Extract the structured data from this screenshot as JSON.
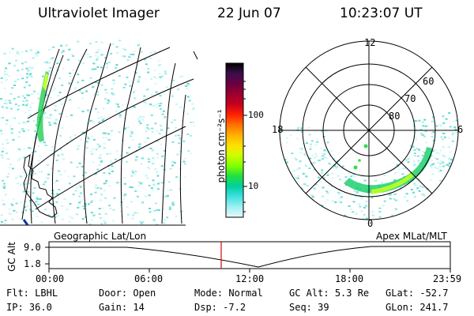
{
  "header": {
    "instrument": "Ultraviolet Imager",
    "date": "22 Jun 07",
    "time": "10:23:07 UT"
  },
  "colorbar": {
    "unit_label": "photon cm⁻²s⁻¹",
    "ticks": [
      "100",
      "10"
    ],
    "colors": [
      "#000000",
      "#3a0f4a",
      "#6a0040",
      "#9a0030",
      "#c80020",
      "#ff2000",
      "#ff7000",
      "#ffb000",
      "#ffe000",
      "#ccff00",
      "#80ff00",
      "#20e040",
      "#00d0a0",
      "#40e0e0",
      "#a0f0f0",
      "#e8f8f8"
    ]
  },
  "geo_panel": {
    "label": "Geographic Lat/Lon"
  },
  "polar_panel": {
    "label": "Apex MLat/MLT",
    "mlt_labels": [
      "12",
      "18",
      "6",
      "0"
    ],
    "mlat_labels": [
      "60",
      "70",
      "80"
    ]
  },
  "altitude_panel": {
    "ylabel": "GC Alt",
    "y_ticks": [
      "9.0",
      "1.8"
    ],
    "x_ticks": [
      "00:00",
      "06:00",
      "12:00",
      "18:00",
      "23:59"
    ]
  },
  "status": [
    [
      {
        "k": "Flt:",
        "v": "LBHL"
      },
      {
        "k": "Door:",
        "v": "Open"
      },
      {
        "k": "Mode:",
        "v": "Normal"
      },
      {
        "k": "GC Alt:",
        "v": "5.3 Re"
      },
      {
        "k": "GLat:",
        "v": "-52.7"
      }
    ],
    [
      {
        "k": "IP:",
        "v": "36.0"
      },
      {
        "k": "Gain:",
        "v": "14"
      },
      {
        "k": "Dsp:",
        "v": "-7.2"
      },
      {
        "k": "Seq:",
        "v": "39"
      },
      {
        "k": "GLon:",
        "v": "241.7"
      }
    ]
  ]
}
